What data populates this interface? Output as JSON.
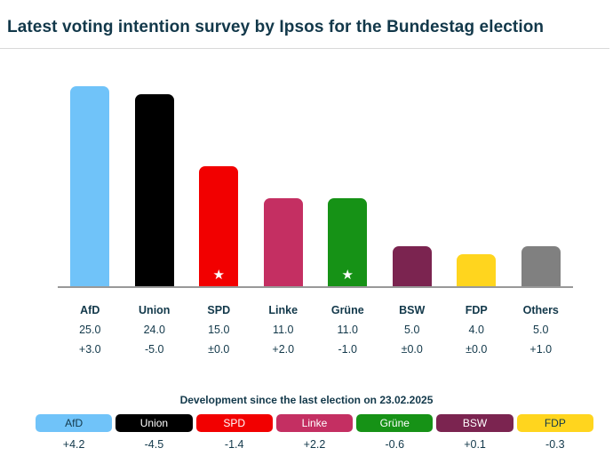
{
  "title": "Latest voting intention survey by Ipsos for the Bundestag election",
  "chart_data": {
    "type": "bar",
    "title": "Latest voting intention survey by Ipsos for the Bundestag election",
    "categories": [
      "AfD",
      "Union",
      "SPD",
      "Linke",
      "Grüne",
      "BSW",
      "FDP",
      "Others"
    ],
    "values": [
      25.0,
      24.0,
      15.0,
      11.0,
      11.0,
      5.0,
      4.0,
      5.0
    ],
    "value_labels": [
      "25.0",
      "24.0",
      "15.0",
      "11.0",
      "11.0",
      "5.0",
      "4.0",
      "5.0"
    ],
    "changes": [
      "+3.0",
      "-5.0",
      "±0.0",
      "+2.0",
      "-1.0",
      "±0.0",
      "±0.0",
      "+1.0"
    ],
    "colors": [
      "#70c3f9",
      "#000000",
      "#f20000",
      "#c42f62",
      "#169216",
      "#7b2450",
      "#ffd51e",
      "#808080"
    ],
    "stars": [
      false,
      false,
      true,
      false,
      true,
      false,
      false,
      false
    ],
    "star_glyph": "★",
    "xlabel": "",
    "ylabel": "",
    "ylim": [
      0,
      25.5
    ],
    "grid": false,
    "legend_position": "none",
    "axis_color": "#999999"
  },
  "footer": {
    "heading": "Development since the last election on 23.02.2025",
    "legend": [
      {
        "label": "AfD",
        "value": "+4.2",
        "color": "#70c3f9",
        "text_color": "#12384a"
      },
      {
        "label": "Union",
        "value": "-4.5",
        "color": "#000000",
        "text_color": "#ffffff"
      },
      {
        "label": "SPD",
        "value": "-1.4",
        "color": "#f20000",
        "text_color": "#ffffff"
      },
      {
        "label": "Linke",
        "value": "+2.2",
        "color": "#c42f62",
        "text_color": "#ffffff"
      },
      {
        "label": "Grüne",
        "value": "-0.6",
        "color": "#169216",
        "text_color": "#ffffff"
      },
      {
        "label": "BSW",
        "value": "+0.1",
        "color": "#7b2450",
        "text_color": "#ffffff"
      },
      {
        "label": "FDP",
        "value": "-0.3",
        "color": "#ffd51e",
        "text_color": "#12384a"
      }
    ]
  }
}
